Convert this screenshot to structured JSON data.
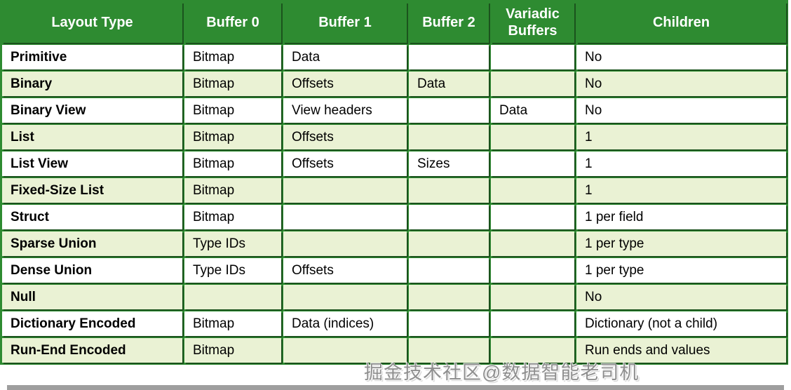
{
  "table": {
    "columns": [
      {
        "label": "Layout Type"
      },
      {
        "label": "Buffer 0"
      },
      {
        "label": "Buffer 1"
      },
      {
        "label": "Buffer 2"
      },
      {
        "label": "Variadic Buffers"
      },
      {
        "label": "Children"
      }
    ],
    "rows": [
      {
        "layout_type": "Primitive",
        "buffer0": "Bitmap",
        "buffer1": "Data",
        "buffer2": "",
        "variadic": "",
        "children": "No"
      },
      {
        "layout_type": "Binary",
        "buffer0": "Bitmap",
        "buffer1": "Offsets",
        "buffer2": "Data",
        "variadic": "",
        "children": "No"
      },
      {
        "layout_type": "Binary View",
        "buffer0": "Bitmap",
        "buffer1": "View headers",
        "buffer2": "",
        "variadic": "Data",
        "children": "No"
      },
      {
        "layout_type": "List",
        "buffer0": "Bitmap",
        "buffer1": "Offsets",
        "buffer2": "",
        "variadic": "",
        "children": "1"
      },
      {
        "layout_type": "List View",
        "buffer0": "Bitmap",
        "buffer1": "Offsets",
        "buffer2": "Sizes",
        "variadic": "",
        "children": "1"
      },
      {
        "layout_type": "Fixed-Size List",
        "buffer0": "Bitmap",
        "buffer1": "",
        "buffer2": "",
        "variadic": "",
        "children": "1"
      },
      {
        "layout_type": "Struct",
        "buffer0": "Bitmap",
        "buffer1": "",
        "buffer2": "",
        "variadic": "",
        "children": "1 per field"
      },
      {
        "layout_type": "Sparse Union",
        "buffer0": "Type IDs",
        "buffer1": "",
        "buffer2": "",
        "variadic": "",
        "children": "1 per type"
      },
      {
        "layout_type": "Dense Union",
        "buffer0": "Type IDs",
        "buffer1": "Offsets",
        "buffer2": "",
        "variadic": "",
        "children": "1 per type"
      },
      {
        "layout_type": "Null",
        "buffer0": "",
        "buffer1": "",
        "buffer2": "",
        "variadic": "",
        "children": "No"
      },
      {
        "layout_type": "Dictionary Encoded",
        "buffer0": "Bitmap",
        "buffer1": "Data (indices)",
        "buffer2": "",
        "variadic": "",
        "children": "Dictionary (not a child)"
      },
      {
        "layout_type": "Run-End Encoded",
        "buffer0": "Bitmap",
        "buffer1": "",
        "buffer2": "",
        "variadic": "",
        "children": "Run ends and values"
      }
    ]
  },
  "watermark": {
    "text": "掘金技术社区@数据智能老司机"
  },
  "colors": {
    "header_green": "#2e8b31",
    "row_alt_green": "#eaf2d4",
    "row_white": "#ffffff",
    "text_black": "#000000",
    "header_text": "#ffffff",
    "watermark_gray": "#8f8f8f",
    "bottom_shadow_gray": "#9e9e9e"
  }
}
